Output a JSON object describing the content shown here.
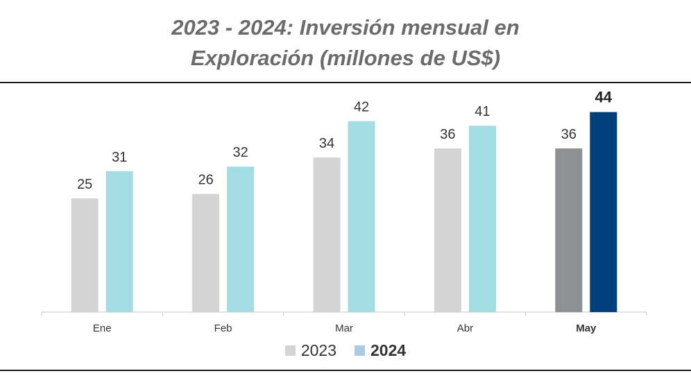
{
  "chart_data": {
    "type": "bar",
    "title_line1": "2023 - 2024: Inversión mensual en",
    "title_line2": "Exploración (millones de US$)",
    "categories": [
      "Ene",
      "Feb",
      "Mar",
      "Abr",
      "May"
    ],
    "highlight_category": "May",
    "series": [
      {
        "name": "2023",
        "values": [
          25,
          26,
          34,
          36,
          36
        ],
        "color": "#d4d4d4",
        "highlight_color": "#8e9194"
      },
      {
        "name": "2024",
        "values": [
          31,
          32,
          42,
          41,
          44
        ],
        "color": "#a1dde3",
        "highlight_color": "#003f7a"
      }
    ],
    "ylim": [
      0,
      45
    ],
    "grid": false,
    "legend": "bottom-center",
    "legend_colors": [
      "#d4d4d4",
      "#a9cbe6"
    ]
  }
}
